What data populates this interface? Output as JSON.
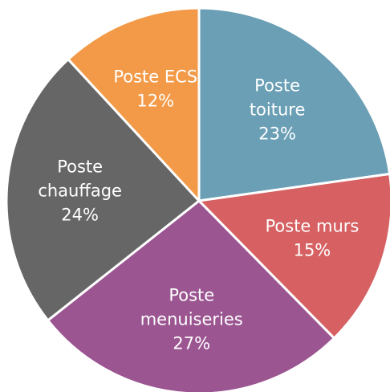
{
  "chart_data": {
    "type": "pie",
    "categories": [
      "Poste toiture",
      "Poste murs",
      "Poste menuiseries",
      "Poste chauffage",
      "Poste ECS"
    ],
    "values": [
      23,
      15,
      27,
      24,
      12
    ],
    "value_labels": [
      "23%",
      "15%",
      "27%",
      "24%",
      "12%"
    ],
    "colors": [
      "#6a9fb5",
      "#d66062",
      "#9b5591",
      "#666666",
      "#f39a48"
    ]
  }
}
